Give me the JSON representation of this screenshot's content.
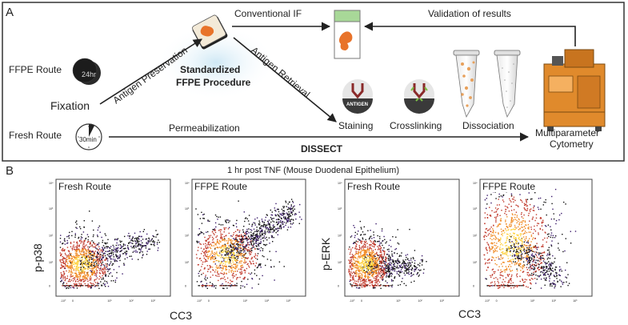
{
  "panel_a": {
    "letter": "A",
    "conventional_if": "Conventional IF",
    "validation": "Validation of results",
    "ffpe_route": "FFPE Route",
    "timer_24": "24hr",
    "antigen_preservation": "Antigen Preservation",
    "standardized": "Standardized",
    "ffpe_procedure": "FFPE Procedure",
    "antigen_retrieval": "Antigen Retrieval",
    "fixation": "Fixation",
    "fresh_route": "Fresh Route",
    "timer_30": "30min",
    "permeabilization": "Permeabilization",
    "antigen_badge": "ANTIGEN",
    "staining": "Staining",
    "crosslinking": "Crosslinking",
    "dissociation": "Dissociation",
    "cytometry_line1": "Multiparameter",
    "cytometry_line2": "Cytometry",
    "dissect": "DISSECT"
  },
  "panel_b": {
    "letter": "B",
    "title": "1 hr post TNF (Mouse Duodenal Epithelium)",
    "left_ylabel": "p-p38",
    "right_ylabel": "p-ERK",
    "left_xlabel": "CC3",
    "right_xlabel": "CC3",
    "plots": [
      {
        "label": "Fresh Route"
      },
      {
        "label": "FFPE Route"
      },
      {
        "label": "Fresh Route"
      },
      {
        "label": "FFPE Route"
      }
    ],
    "x_ticks": [
      "-10⁰",
      "0",
      "10¹",
      "10²",
      "10³"
    ],
    "y_ticks": [
      "10⁴",
      "10³",
      "10²",
      "10¹",
      "0"
    ]
  },
  "colors": {
    "panel_border": "#333333",
    "glow": "#bfe0f0",
    "tissue": "#e8732a",
    "tube_cap": "#a8d898",
    "instrument": "#e08a2c",
    "density_low": "#3b1b6b",
    "density_mid": "#c0392b",
    "density_high": "#ffd23f"
  }
}
